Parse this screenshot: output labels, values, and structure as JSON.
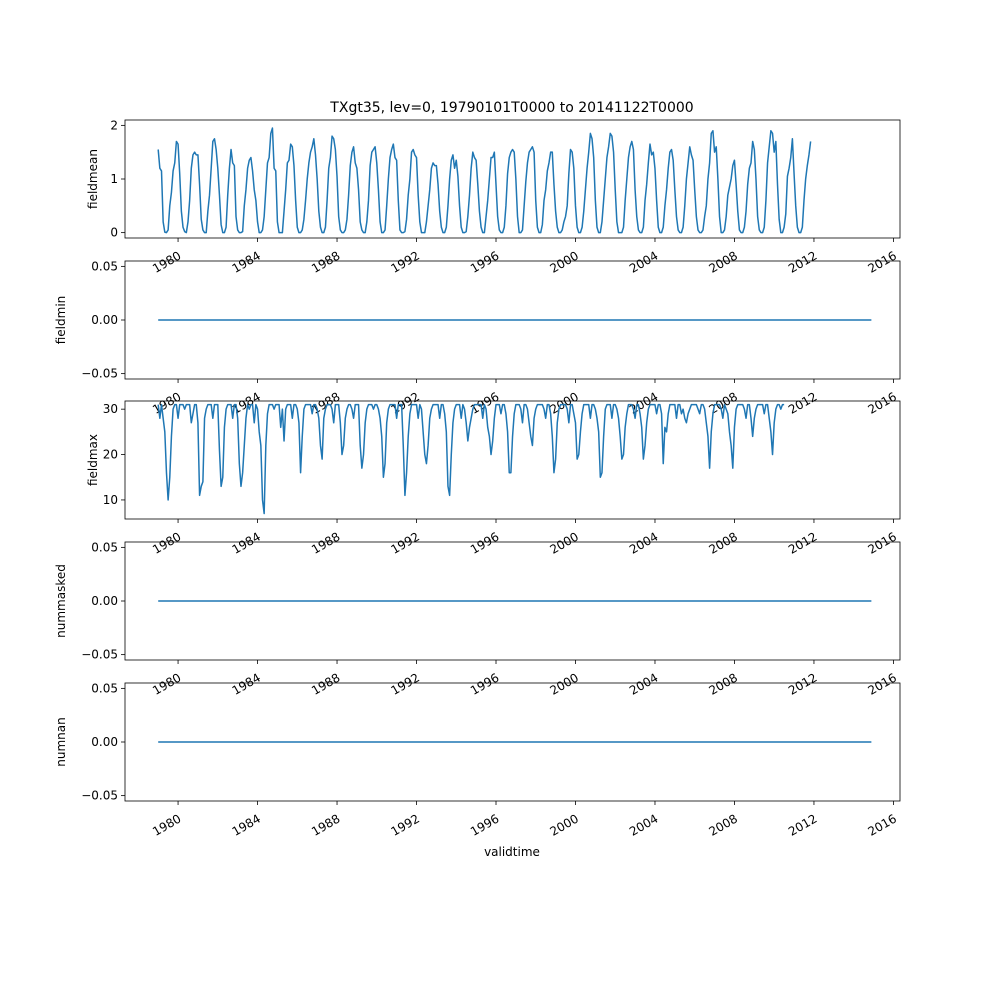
{
  "figure": {
    "title": "TXgt35, lev=0, 19790101T0000 to 20141122T0000",
    "xlabel": "validtime"
  },
  "chart_data": [
    {
      "type": "line",
      "ylabel": "fieldmean",
      "xlim": [
        1977.33,
        2016.33
      ],
      "ylim": [
        -0.1,
        2.1
      ],
      "yticks": [
        0,
        1,
        2
      ],
      "ytick_labels": [
        "0",
        "1",
        "2"
      ],
      "xticks": [
        1980,
        1984,
        1988,
        1992,
        1996,
        2000,
        2004,
        2008,
        2012,
        2016
      ],
      "xtick_labels": [
        "1980",
        "1984",
        "1988",
        "1992",
        "1996",
        "2000",
        "2004",
        "2008",
        "2012",
        "2016"
      ],
      "color": "#1f77b4",
      "x_start": 1979.0,
      "x_step": 0.08333,
      "values": [
        1.55,
        1.2,
        1.15,
        0.2,
        0.01,
        0.0,
        0.05,
        0.5,
        0.75,
        1.15,
        1.3,
        1.7,
        1.65,
        1.1,
        0.4,
        0.1,
        0.02,
        0.0,
        0.2,
        0.6,
        1.2,
        1.45,
        1.5,
        1.45,
        1.45,
        0.9,
        0.25,
        0.05,
        0.0,
        0.0,
        0.4,
        0.7,
        1.2,
        1.7,
        1.75,
        1.55,
        1.2,
        0.7,
        0.15,
        0.0,
        0.0,
        0.1,
        0.7,
        1.2,
        1.55,
        1.3,
        1.25,
        0.3,
        0.05,
        0.0,
        0.0,
        0.02,
        0.5,
        0.8,
        1.2,
        1.35,
        1.4,
        1.15,
        0.8,
        0.6,
        0.2,
        0.0,
        0.0,
        0.05,
        0.3,
        0.8,
        1.3,
        1.4,
        1.85,
        1.95,
        1.2,
        1.15,
        0.2,
        0.0,
        0.0,
        0.0,
        0.4,
        0.8,
        1.3,
        1.35,
        1.65,
        1.6,
        1.25,
        0.6,
        0.1,
        0.0,
        0.0,
        0.05,
        0.25,
        0.6,
        1.0,
        1.3,
        1.5,
        1.6,
        1.75,
        1.45,
        1.0,
        0.4,
        0.1,
        0.0,
        0.0,
        0.1,
        0.6,
        1.2,
        1.4,
        1.8,
        1.75,
        1.55,
        1.05,
        0.3,
        0.05,
        0.0,
        0.0,
        0.05,
        0.25,
        0.7,
        1.25,
        1.5,
        1.6,
        1.3,
        1.2,
        0.8,
        0.2,
        0.05,
        0.0,
        0.0,
        0.2,
        0.6,
        1.25,
        1.5,
        1.55,
        1.6,
        1.3,
        0.8,
        0.2,
        0.0,
        0.0,
        0.05,
        0.5,
        1.0,
        1.4,
        1.55,
        1.65,
        1.4,
        1.35,
        0.6,
        0.05,
        0.0,
        0.0,
        0.02,
        0.25,
        0.7,
        1.0,
        1.5,
        1.55,
        1.45,
        1.4,
        0.7,
        0.2,
        0.0,
        0.0,
        0.0,
        0.2,
        0.5,
        0.8,
        1.2,
        1.3,
        1.25,
        1.25,
        0.9,
        0.4,
        0.1,
        0.0,
        0.0,
        0.1,
        0.5,
        1.0,
        1.35,
        1.45,
        1.2,
        1.35,
        1.05,
        0.5,
        0.1,
        0.0,
        0.0,
        0.02,
        0.3,
        0.7,
        1.2,
        1.5,
        1.4,
        1.35,
        0.9,
        0.4,
        0.1,
        0.0,
        0.0,
        0.3,
        0.6,
        1.0,
        1.4,
        1.4,
        1.5,
        0.9,
        0.3,
        0.05,
        0.0,
        0.0,
        0.1,
        0.5,
        1.1,
        1.4,
        1.5,
        1.55,
        1.5,
        1.0,
        0.3,
        0.0,
        0.0,
        0.05,
        0.5,
        0.95,
        1.3,
        1.5,
        1.55,
        1.6,
        1.5,
        0.6,
        0.1,
        0.0,
        0.0,
        0.15,
        0.6,
        0.8,
        1.15,
        1.3,
        1.5,
        1.5,
        0.9,
        0.4,
        0.1,
        0.0,
        0.0,
        0.05,
        0.2,
        0.3,
        0.5,
        1.1,
        1.55,
        1.5,
        1.2,
        0.5,
        0.1,
        0.0,
        0.0,
        0.1,
        0.4,
        0.8,
        1.2,
        1.5,
        1.85,
        1.75,
        1.4,
        0.6,
        0.1,
        0.0,
        0.0,
        0.2,
        0.6,
        1.0,
        1.4,
        1.6,
        1.85,
        1.8,
        1.5,
        0.8,
        0.2,
        0.0,
        0.0,
        0.0,
        0.1,
        0.6,
        1.0,
        1.4,
        1.6,
        1.7,
        1.55,
        0.8,
        0.3,
        0.05,
        0.0,
        0.0,
        0.1,
        0.6,
        0.9,
        1.3,
        1.65,
        1.45,
        1.5,
        1.2,
        0.6,
        0.1,
        0.0,
        0.0,
        0.1,
        0.5,
        0.8,
        1.2,
        1.5,
        1.55,
        1.35,
        0.8,
        0.3,
        0.05,
        0.0,
        0.0,
        0.1,
        0.5,
        1.0,
        1.3,
        1.6,
        1.45,
        1.35,
        0.8,
        0.3,
        0.05,
        0.0,
        0.0,
        0.05,
        0.3,
        0.5,
        1.0,
        1.3,
        1.85,
        1.9,
        1.5,
        1.6,
        1.0,
        0.3,
        0.0,
        0.0,
        0.05,
        0.3,
        0.7,
        0.85,
        1.0,
        1.25,
        1.35,
        0.9,
        0.4,
        0.05,
        0.0,
        0.0,
        0.1,
        0.4,
        0.9,
        1.2,
        1.3,
        1.7,
        1.55,
        1.0,
        0.3,
        0.05,
        0.0,
        0.0,
        0.1,
        0.6,
        1.3,
        1.6,
        1.9,
        1.85,
        1.5,
        1.7,
        0.9,
        0.25,
        0.0,
        0.0,
        0.1,
        0.35,
        1.05,
        1.2,
        1.4,
        1.75,
        1.1,
        0.5,
        0.1,
        0.0,
        0.0,
        0.1,
        0.6,
        1.0,
        1.25,
        1.45,
        1.7
      ]
    },
    {
      "type": "line",
      "ylabel": "fieldmin",
      "xlim": [
        1977.33,
        2016.33
      ],
      "ylim": [
        -0.055,
        0.055
      ],
      "yticks": [
        -0.05,
        0.0,
        0.05
      ],
      "ytick_labels": [
        "−0.05",
        "0.00",
        "0.05"
      ],
      "xticks": [
        1980,
        1984,
        1988,
        1992,
        1996,
        2000,
        2004,
        2008,
        2012,
        2016
      ],
      "xtick_labels": [
        "1980",
        "1984",
        "1988",
        "1992",
        "1996",
        "2000",
        "2004",
        "2008",
        "2012",
        "2016"
      ],
      "color": "#1f77b4",
      "x_start": 1979.0,
      "x_end": 2014.89,
      "constant": 0.0
    },
    {
      "type": "line",
      "ylabel": "fieldmax",
      "xlim": [
        1977.33,
        2016.33
      ],
      "ylim": [
        5.8,
        31.8
      ],
      "yticks": [
        10,
        20,
        30
      ],
      "ytick_labels": [
        "10",
        "20",
        "30"
      ],
      "xticks": [
        1980,
        1984,
        1988,
        1992,
        1996,
        2000,
        2004,
        2008,
        2012,
        2016
      ],
      "xtick_labels": [
        "1980",
        "1984",
        "1988",
        "1992",
        "1996",
        "2000",
        "2004",
        "2008",
        "2012",
        "2016"
      ],
      "color": "#1f77b4",
      "x_start": 1979.0,
      "x_step": 0.08333,
      "values": [
        31,
        28,
        31,
        28,
        25,
        16,
        10,
        15,
        24,
        30,
        31,
        31,
        28,
        31,
        31,
        31,
        30,
        31,
        31,
        31,
        27,
        29,
        31,
        31,
        27,
        11,
        13,
        14,
        28,
        30,
        31,
        31,
        31,
        28,
        31,
        31,
        31,
        21,
        13,
        15,
        26,
        30,
        31,
        31,
        31,
        28,
        31,
        31,
        28,
        18,
        13,
        16,
        22,
        28,
        31,
        30,
        31,
        31,
        27,
        31,
        30,
        25,
        22,
        10,
        7,
        22,
        29,
        31,
        31,
        31,
        30,
        31,
        31,
        31,
        26,
        30,
        23,
        30,
        31,
        31,
        31,
        28,
        31,
        31,
        30,
        27,
        16,
        24,
        30,
        31,
        31,
        31,
        31,
        29,
        31,
        31,
        30,
        28,
        22,
        19,
        28,
        30,
        31,
        31,
        31,
        30,
        27,
        31,
        31,
        31,
        27,
        20,
        22,
        28,
        30,
        31,
        31,
        30,
        28,
        31,
        31,
        31,
        22,
        17,
        20,
        27,
        30,
        31,
        31,
        31,
        30,
        31,
        31,
        30,
        28,
        24,
        15,
        18,
        27,
        30,
        31,
        31,
        31,
        31,
        28,
        31,
        31,
        31,
        22,
        11,
        16,
        24,
        29,
        31,
        31,
        31,
        31,
        28,
        31,
        30,
        25,
        20,
        18,
        22,
        28,
        30,
        31,
        31,
        31,
        31,
        28,
        31,
        31,
        29,
        25,
        13,
        11,
        20,
        27,
        30,
        31,
        31,
        31,
        28,
        31,
        30,
        27,
        23,
        26,
        28,
        30,
        31,
        31,
        31,
        31,
        31,
        28,
        31,
        30,
        26,
        24,
        20,
        23,
        28,
        31,
        31,
        31,
        29,
        31,
        31,
        29,
        25,
        16,
        16,
        24,
        29,
        31,
        31,
        31,
        30,
        27,
        31,
        31,
        30,
        27,
        24,
        22,
        28,
        30,
        31,
        31,
        31,
        31,
        30,
        28,
        31,
        31,
        29,
        24,
        16,
        19,
        27,
        30,
        31,
        31,
        31,
        31,
        30,
        27,
        31,
        31,
        29,
        27,
        19,
        20,
        25,
        29,
        31,
        31,
        31,
        31,
        28,
        31,
        31,
        30,
        28,
        25,
        15,
        16,
        24,
        30,
        31,
        31,
        31,
        28,
        31,
        31,
        30,
        28,
        24,
        19,
        20,
        26,
        29,
        31,
        31,
        31,
        30,
        28,
        31,
        31,
        29,
        26,
        19,
        22,
        27,
        30,
        31,
        31,
        31,
        31,
        29,
        31,
        31,
        29,
        18,
        26,
        25,
        29,
        31,
        31,
        31,
        31,
        28,
        31,
        31,
        29,
        30,
        28,
        27,
        29,
        30,
        31,
        31,
        31,
        31,
        30,
        29,
        31,
        31,
        30,
        27,
        24,
        17,
        25,
        29,
        31,
        31,
        31,
        31,
        30,
        28,
        31,
        30,
        29,
        25,
        22,
        17,
        26,
        30,
        31,
        31,
        31,
        31,
        30,
        28,
        31,
        31,
        28,
        24,
        28,
        30,
        31,
        31,
        31,
        31,
        29,
        31,
        31,
        28,
        25,
        20,
        27,
        30,
        31,
        31,
        30,
        31,
        31
      ]
    },
    {
      "type": "line",
      "ylabel": "nummasked",
      "xlim": [
        1977.33,
        2016.33
      ],
      "ylim": [
        -0.055,
        0.055
      ],
      "yticks": [
        -0.05,
        0.0,
        0.05
      ],
      "ytick_labels": [
        "−0.05",
        "0.00",
        "0.05"
      ],
      "xticks": [
        1980,
        1984,
        1988,
        1992,
        1996,
        2000,
        2004,
        2008,
        2012,
        2016
      ],
      "xtick_labels": [
        "1980",
        "1984",
        "1988",
        "1992",
        "1996",
        "2000",
        "2004",
        "2008",
        "2012",
        "2016"
      ],
      "color": "#1f77b4",
      "x_start": 1979.0,
      "x_end": 2014.89,
      "constant": 0.0
    },
    {
      "type": "line",
      "ylabel": "numnan",
      "xlim": [
        1977.33,
        2016.33
      ],
      "ylim": [
        -0.055,
        0.055
      ],
      "yticks": [
        -0.05,
        0.0,
        0.05
      ],
      "ytick_labels": [
        "−0.05",
        "0.00",
        "0.05"
      ],
      "xticks": [
        1980,
        1984,
        1988,
        1992,
        1996,
        2000,
        2004,
        2008,
        2012,
        2016
      ],
      "xtick_labels": [
        "1980",
        "1984",
        "1988",
        "1992",
        "1996",
        "2000",
        "2004",
        "2008",
        "2012",
        "2016"
      ],
      "color": "#1f77b4",
      "x_start": 1979.0,
      "x_end": 2014.89,
      "constant": 0.0
    }
  ]
}
